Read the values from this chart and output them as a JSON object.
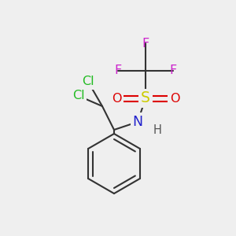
{
  "background_color": "#efefef",
  "figsize": [
    3.0,
    3.0
  ],
  "dpi": 100,
  "colors": {
    "C": "#333333",
    "Cl": "#22bb22",
    "N": "#2222cc",
    "S": "#cccc00",
    "O": "#dd0000",
    "F": "#cc22cc",
    "H": "#555555",
    "bond": "#333333",
    "ring": "#333333"
  },
  "font_size": 11.5
}
